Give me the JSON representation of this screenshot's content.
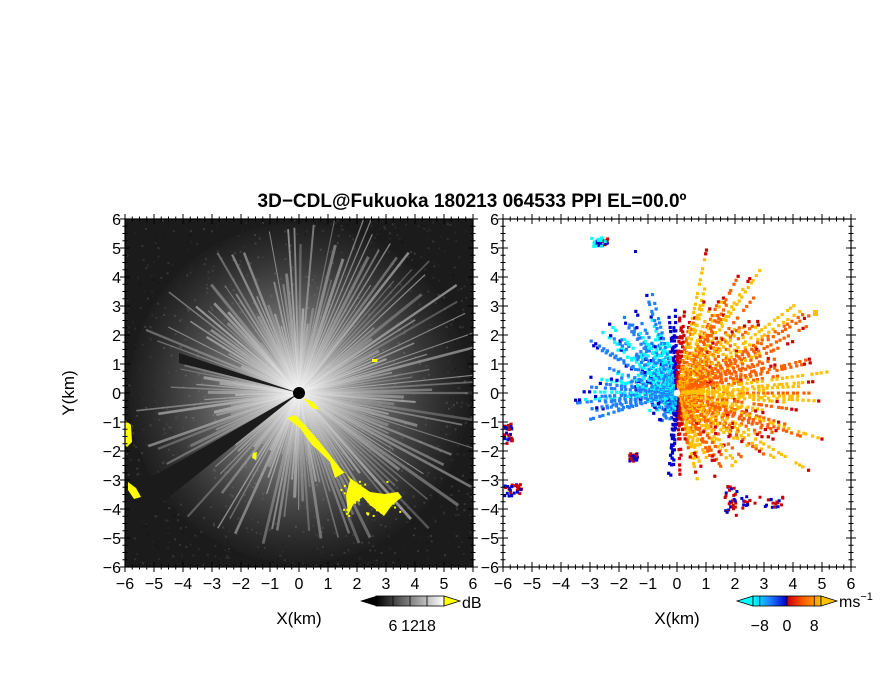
{
  "title": "3D−CDL@Fukuoka 180213 064533 PPI EL=00.0º",
  "chart_data": [
    {
      "type": "heatmap",
      "panel": "reflectivity",
      "xlabel": "X(km)",
      "ylabel": "Y(km)",
      "xlim": [
        -6,
        6
      ],
      "ylim": [
        -6,
        6
      ],
      "xticks": [
        "−6",
        "−5",
        "−4",
        "−3",
        "−2",
        "−1",
        "0",
        "1",
        "2",
        "3",
        "4",
        "5",
        "6"
      ],
      "yticks": [
        "6",
        "5",
        "4",
        "3",
        "2",
        "1",
        "0",
        "−1",
        "−2",
        "−3",
        "−4",
        "−5",
        "−6"
      ],
      "background_color": "#1b1b1b",
      "highlight_color": "#ffff00",
      "colorbar": {
        "unit": "dB",
        "ticks": [
          "6",
          "12",
          "18"
        ],
        "range": [
          0,
          24
        ],
        "low_color": "#000000",
        "high_color": "#ffffff",
        "over_color": "#ffff00"
      }
    },
    {
      "type": "heatmap",
      "panel": "doppler-velocity",
      "xlabel": "X(km)",
      "ylabel": "",
      "xlim": [
        -6,
        6
      ],
      "ylim": [
        -6,
        6
      ],
      "xticks": [
        "−6",
        "−5",
        "−4",
        "−3",
        "−2",
        "−1",
        "0",
        "1",
        "2",
        "3",
        "4",
        "5",
        "6"
      ],
      "yticks": [
        "6",
        "5",
        "4",
        "3",
        "2",
        "1",
        "0",
        "−1",
        "−2",
        "−3",
        "−4",
        "−5",
        "−6"
      ],
      "colorbar": {
        "unit": "ms",
        "unit_exponent": "−1",
        "ticks": [
          "−8",
          "0",
          "8"
        ],
        "range": [
          -10,
          10
        ],
        "colors": [
          "#00ffff",
          "#2080ff",
          "#0000cc",
          "#cc0000",
          "#ff6000",
          "#ffc000"
        ]
      }
    }
  ]
}
